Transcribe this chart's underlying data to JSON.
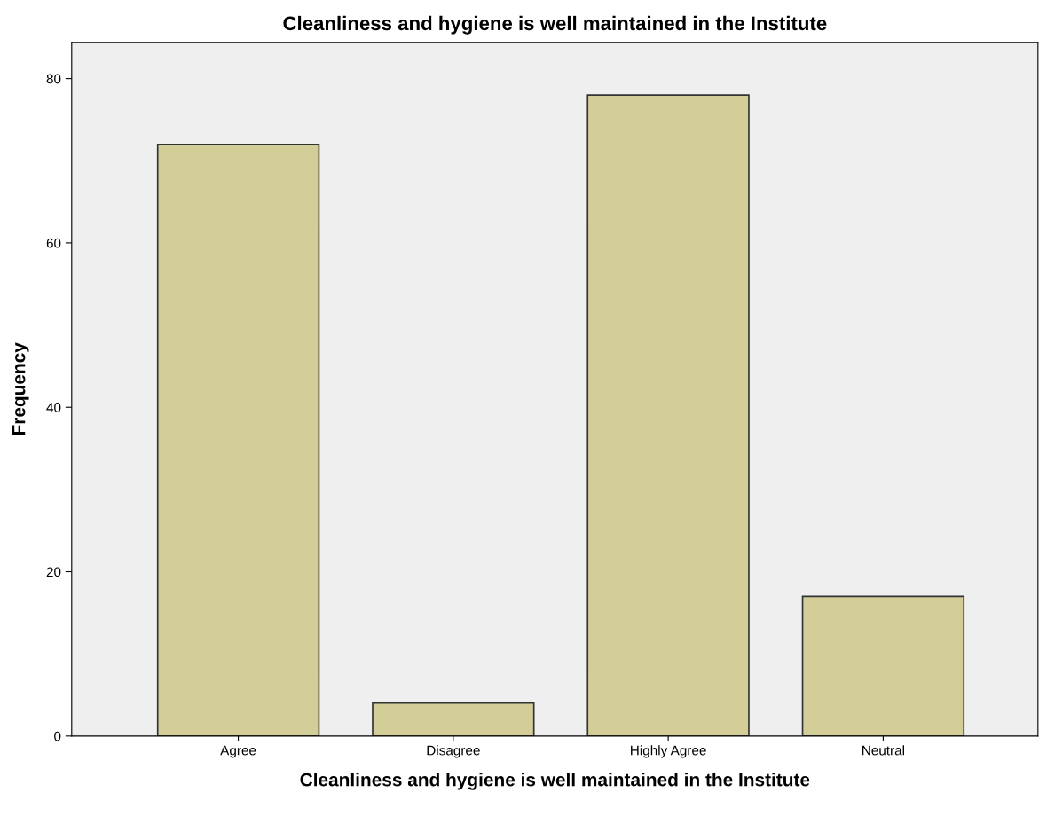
{
  "chart_data": {
    "type": "bar",
    "title": "Cleanliness and hygiene is well maintained in the Institute",
    "xlabel": "Cleanliness and hygiene is well maintained in the Institute",
    "ylabel": "Frequency",
    "categories": [
      "Agree",
      "Disagree",
      "Highly Agree",
      "Neutral"
    ],
    "values": [
      72,
      4,
      78,
      17
    ],
    "color": "#d3ce97",
    "ylim": [
      0,
      84.4
    ],
    "yticks": [
      0,
      20,
      40,
      60,
      80
    ],
    "grid": false,
    "legend": false
  }
}
